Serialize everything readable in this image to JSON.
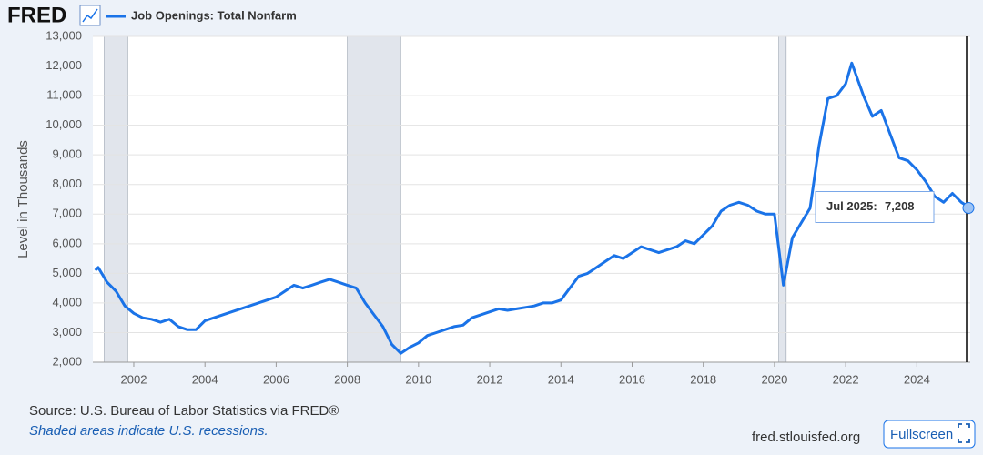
{
  "header": {
    "logo": "FRED"
  },
  "chart_data": {
    "type": "line",
    "series": [
      {
        "name": "Job Openings: Total Nonfarm",
        "color": "#1a73e8",
        "x": [
          2000.92,
          2001.0,
          2001.25,
          2001.5,
          2001.75,
          2002.0,
          2002.25,
          2002.5,
          2002.75,
          2003.0,
          2003.25,
          2003.5,
          2003.75,
          2004.0,
          2004.25,
          2004.5,
          2004.75,
          2005.0,
          2005.25,
          2005.5,
          2005.75,
          2006.0,
          2006.25,
          2006.5,
          2006.75,
          2007.0,
          2007.25,
          2007.5,
          2007.75,
          2008.0,
          2008.25,
          2008.5,
          2008.75,
          2009.0,
          2009.25,
          2009.5,
          2009.75,
          2010.0,
          2010.25,
          2010.5,
          2010.75,
          2011.0,
          2011.25,
          2011.5,
          2011.75,
          2012.0,
          2012.25,
          2012.5,
          2012.75,
          2013.0,
          2013.25,
          2013.5,
          2013.75,
          2014.0,
          2014.25,
          2014.5,
          2014.75,
          2015.0,
          2015.25,
          2015.5,
          2015.75,
          2016.0,
          2016.25,
          2016.5,
          2016.75,
          2017.0,
          2017.25,
          2017.5,
          2017.75,
          2018.0,
          2018.25,
          2018.5,
          2018.75,
          2019.0,
          2019.25,
          2019.5,
          2019.75,
          2020.0,
          2020.25,
          2020.5,
          2020.75,
          2021.0,
          2021.25,
          2021.5,
          2021.75,
          2022.0,
          2022.17,
          2022.5,
          2022.75,
          2023.0,
          2023.25,
          2023.5,
          2023.75,
          2024.0,
          2024.25,
          2024.5,
          2024.75,
          2025.0,
          2025.25,
          2025.5
        ],
        "values": [
          5100,
          5200,
          4700,
          4400,
          3900,
          3650,
          3500,
          3450,
          3350,
          3450,
          3200,
          3100,
          3100,
          3400,
          3500,
          3600,
          3700,
          3800,
          3900,
          4000,
          4100,
          4200,
          4400,
          4600,
          4500,
          4600,
          4700,
          4800,
          4700,
          4600,
          4500,
          4000,
          3600,
          3200,
          2600,
          2300,
          2500,
          2650,
          2900,
          3000,
          3100,
          3200,
          3250,
          3500,
          3600,
          3700,
          3800,
          3750,
          3800,
          3850,
          3900,
          4000,
          4000,
          4100,
          4500,
          4900,
          5000,
          5200,
          5400,
          5600,
          5500,
          5700,
          5900,
          5800,
          5700,
          5800,
          5900,
          6100,
          6000,
          6300,
          6600,
          7100,
          7300,
          7400,
          7300,
          7100,
          7000,
          7000,
          4600,
          6200,
          6700,
          7200,
          9300,
          10900,
          11000,
          11400,
          12100,
          11000,
          10300,
          10500,
          9700,
          8900,
          8800,
          8500,
          8100,
          7600,
          7400,
          7700,
          7400,
          7208
        ]
      }
    ],
    "y_label": "Level in Thousands",
    "xlim": [
      2000.85,
      2025.5
    ],
    "xticks": [
      2002,
      2004,
      2006,
      2008,
      2010,
      2012,
      2014,
      2016,
      2018,
      2020,
      2022,
      2024
    ],
    "ylim": [
      2000,
      13000
    ],
    "yticks": [
      {
        "value": 2000,
        "label": "2,000"
      },
      {
        "value": 3000,
        "label": "3,000"
      },
      {
        "value": 4000,
        "label": "4,000"
      },
      {
        "value": 5000,
        "label": "5,000"
      },
      {
        "value": 6000,
        "label": "6,000"
      },
      {
        "value": 7000,
        "label": "7,000"
      },
      {
        "value": 8000,
        "label": "8,000"
      },
      {
        "value": 9000,
        "label": "9,000"
      },
      {
        "value": 10000,
        "label": "10,000"
      },
      {
        "value": 11000,
        "label": "11,000"
      },
      {
        "value": 12000,
        "label": "12,000"
      },
      {
        "value": 13000,
        "label": "13,000"
      }
    ],
    "grid": true,
    "recessions": [
      [
        2001.17,
        2001.83
      ],
      [
        2008.0,
        2009.5
      ],
      [
        2020.12,
        2020.33
      ]
    ],
    "tooltip": {
      "label": "Jul 2025:",
      "value": 7208,
      "value_label": "7,208"
    }
  },
  "footer": {
    "source": "Source: U.S. Bureau of Labor Statistics via FRED®",
    "note": "Shaded areas indicate U.S. recessions.",
    "site": "fred.stlouisfed.org",
    "button": "Fullscreen"
  }
}
